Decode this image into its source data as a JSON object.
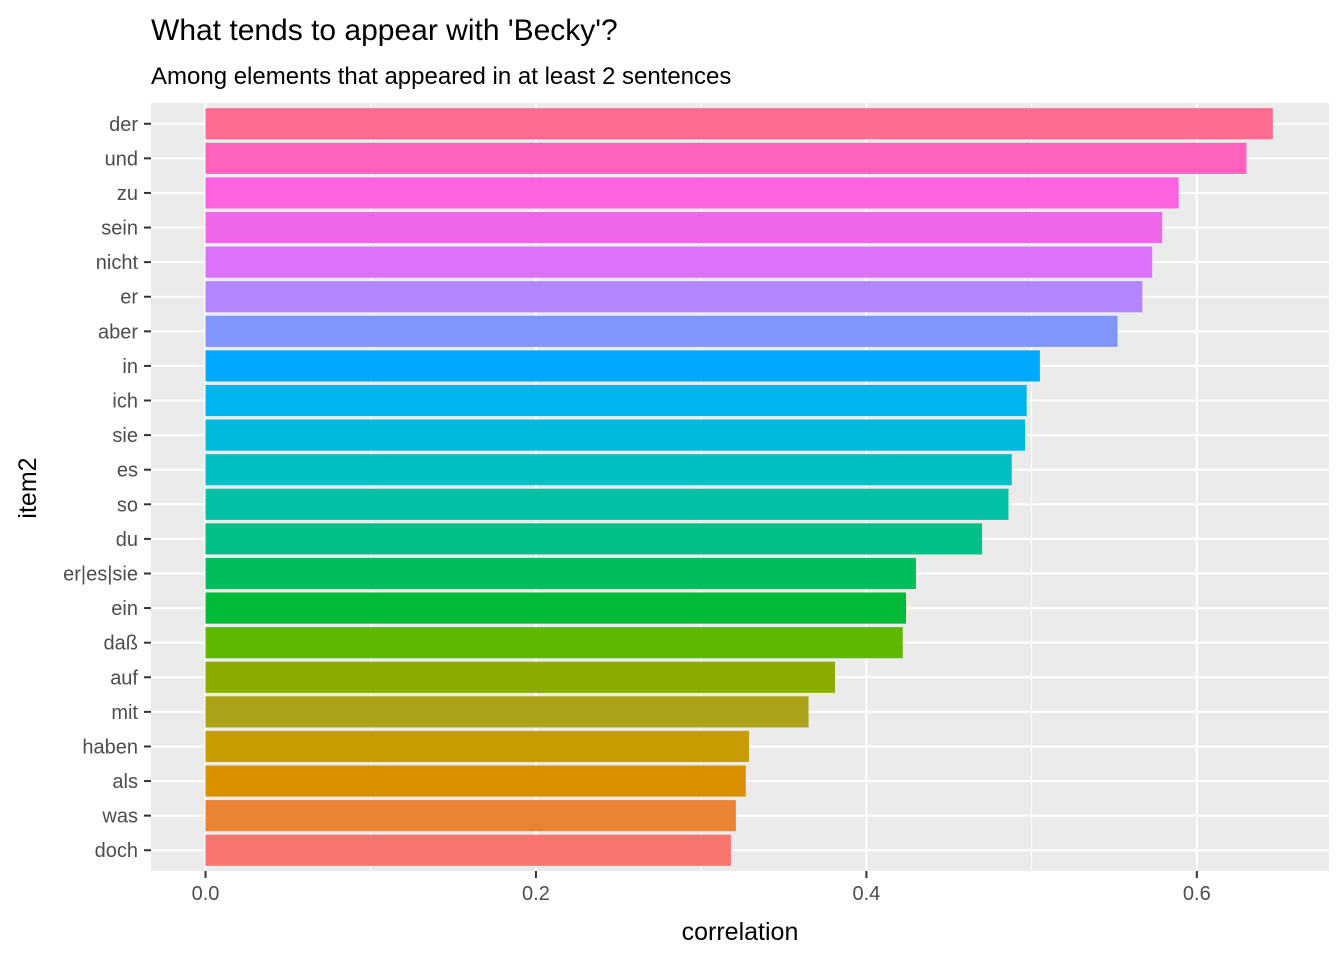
{
  "chart_data": {
    "type": "bar",
    "orientation": "horizontal",
    "title": "What tends to appear with 'Becky'?",
    "subtitle": "Among elements that appeared in at least 2 sentences",
    "xlabel": "correlation",
    "ylabel": "item2",
    "xlim": [
      -0.033,
      0.68
    ],
    "x_ticks": [
      {
        "value": 0.0,
        "label": "0.0"
      },
      {
        "value": 0.2,
        "label": "0.2"
      },
      {
        "value": 0.4,
        "label": "0.4"
      },
      {
        "value": 0.6,
        "label": "0.6"
      }
    ],
    "categories": [
      "der",
      "und",
      "zu",
      "sein",
      "nicht",
      "er",
      "aber",
      "in",
      "ich",
      "sie",
      "es",
      "so",
      "du",
      "er|es|sie",
      "ein",
      "daß",
      "auf",
      "mit",
      "haben",
      "als",
      "was",
      "doch"
    ],
    "values": [
      0.646,
      0.63,
      0.589,
      0.579,
      0.573,
      0.567,
      0.552,
      0.505,
      0.497,
      0.496,
      0.488,
      0.486,
      0.47,
      0.43,
      0.424,
      0.422,
      0.381,
      0.365,
      0.329,
      0.327,
      0.321,
      0.318
    ],
    "colors": [
      "#FF6C91",
      "#FF62BC",
      "#FF61E0",
      "#F066EA",
      "#DC71FA",
      "#B385FF",
      "#7F96FF",
      "#00A9FF",
      "#00B4EF",
      "#00BADE",
      "#00BFC4",
      "#00C1A7",
      "#00C087",
      "#00BD5C",
      "#00BA38",
      "#5DB700",
      "#8CAB00",
      "#AAA219",
      "#C69C00",
      "#DA8F00",
      "#EB8335",
      "#F8766D"
    ],
    "panel_background": "#EBEBEB",
    "grid_color": "#FFFFFF",
    "grid": true,
    "legend": "none"
  }
}
